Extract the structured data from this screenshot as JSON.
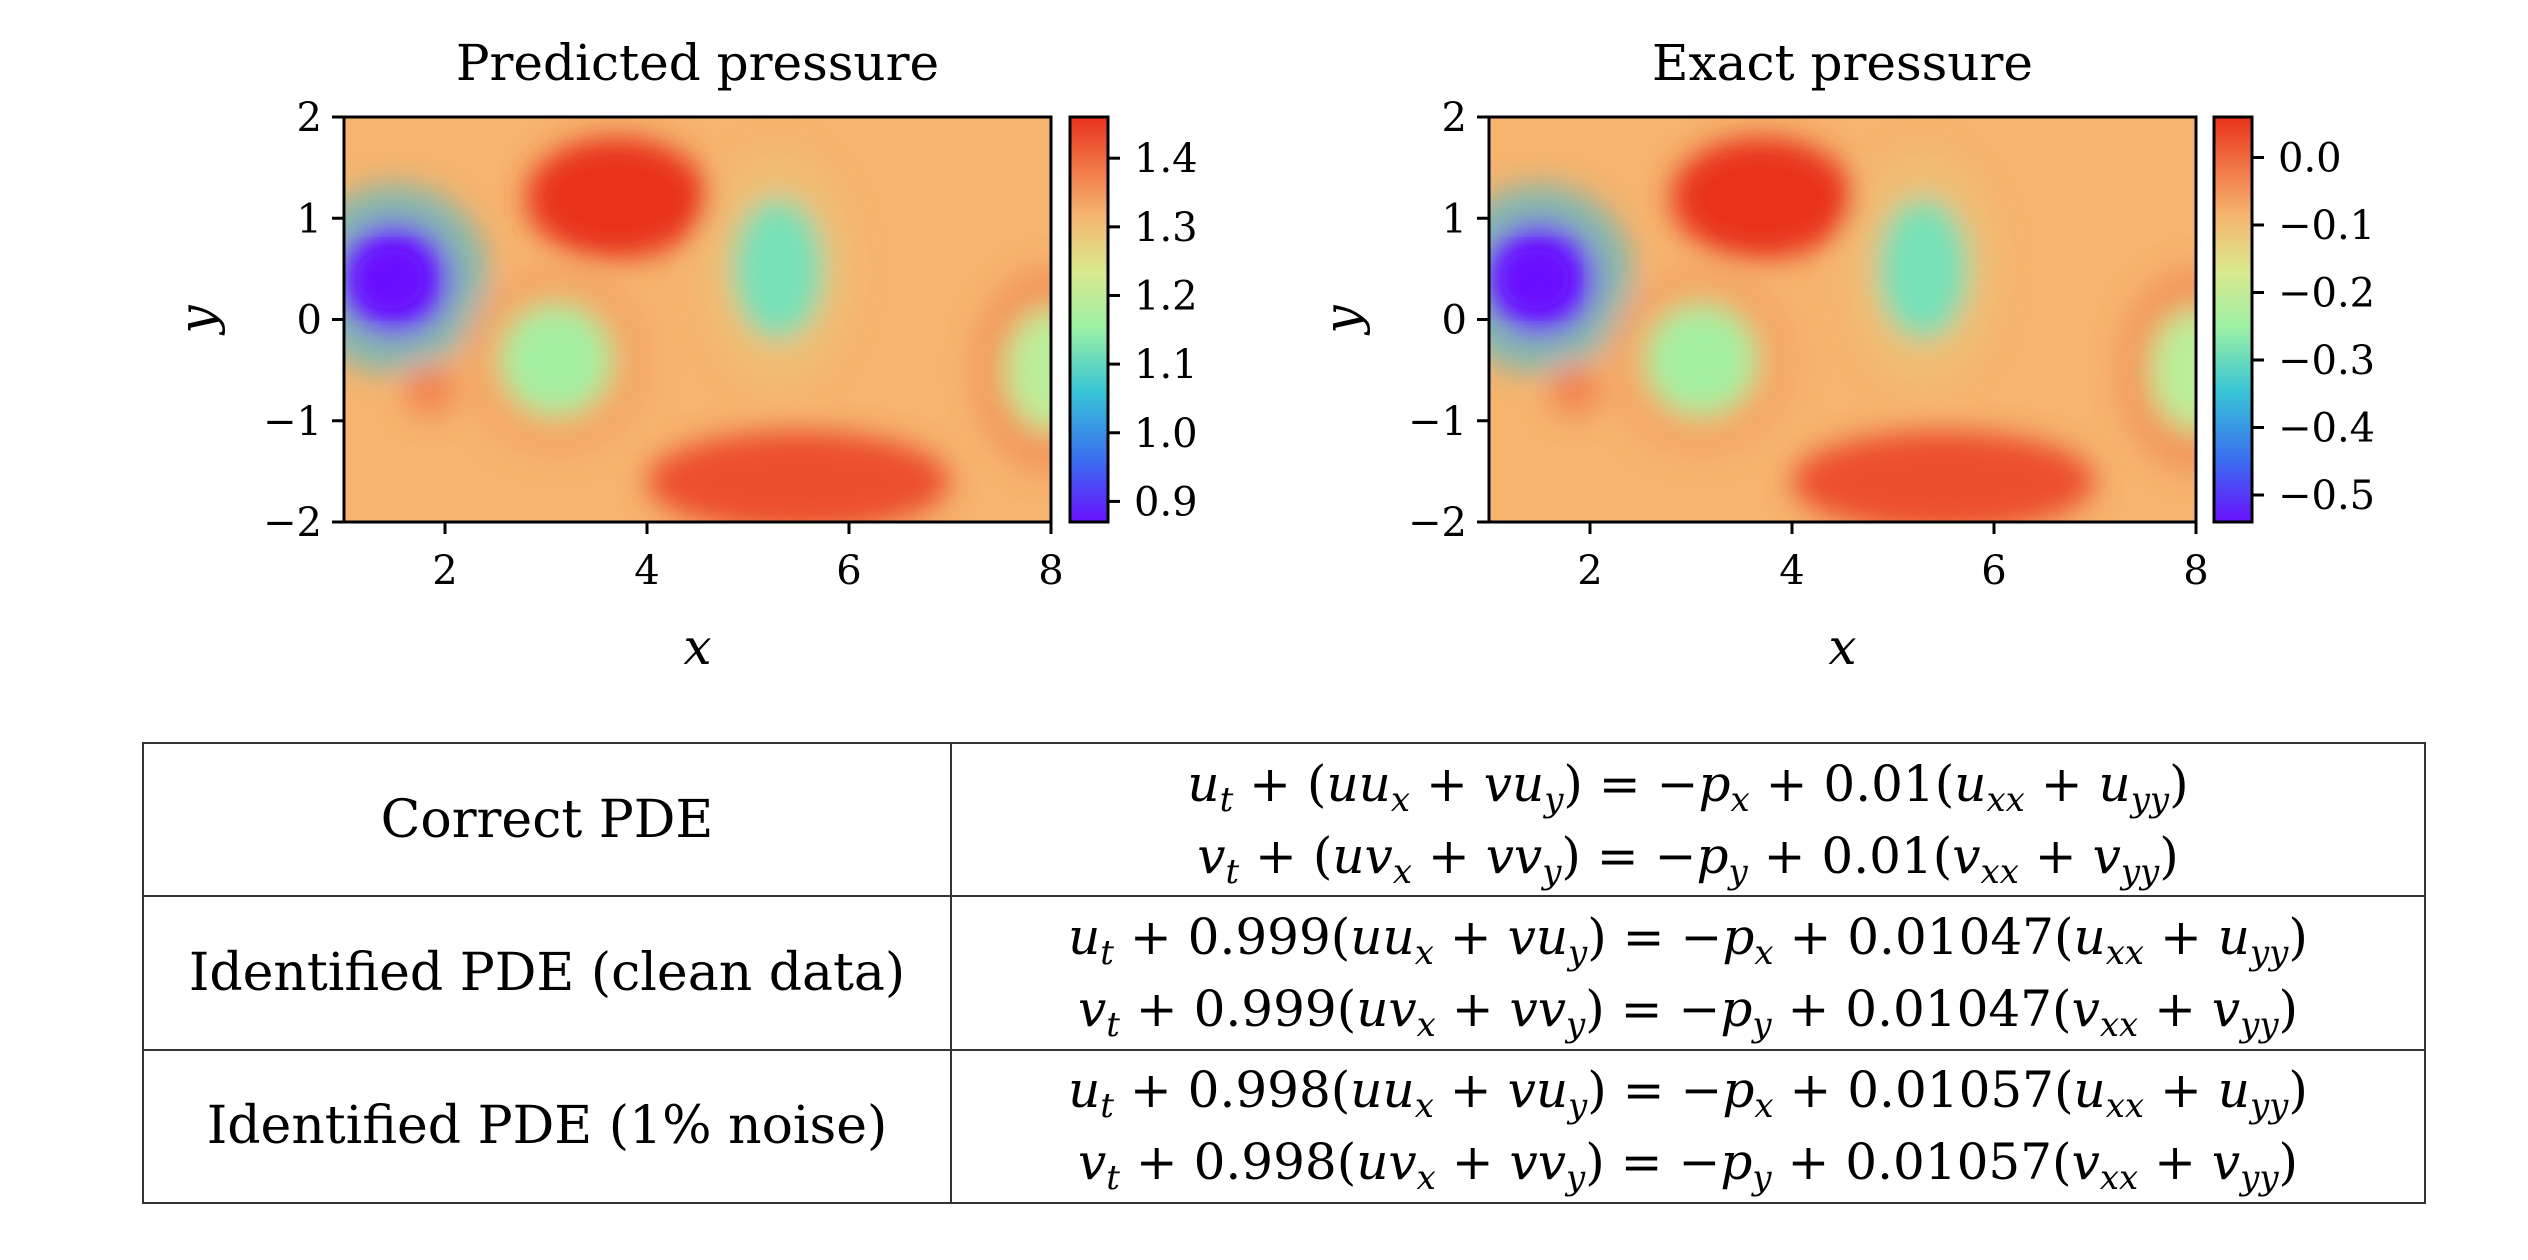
{
  "chart_data": [
    {
      "type": "heatmap",
      "title": "Predicted pressure",
      "xlabel": "x",
      "ylabel": "y",
      "xlim": [
        1,
        8
      ],
      "ylim": [
        -2,
        2
      ],
      "xticks": [
        2,
        4,
        6,
        8
      ],
      "yticks": [
        2,
        1,
        0,
        -1,
        -2
      ],
      "colormap": "rainbow",
      "colorbar": {
        "range": [
          0.87,
          1.46
        ],
        "ticks": [
          "1.4",
          "1.3",
          "1.2",
          "1.1",
          "1.0",
          "0.9"
        ],
        "tick_values": [
          1.4,
          1.3,
          1.2,
          1.1,
          1.0,
          0.9
        ]
      }
    },
    {
      "type": "heatmap",
      "title": "Exact pressure",
      "xlabel": "x",
      "ylabel": "y",
      "xlim": [
        1,
        8
      ],
      "ylim": [
        -2,
        2
      ],
      "xticks": [
        2,
        4,
        6,
        8
      ],
      "yticks": [
        2,
        1,
        0,
        -1,
        -2
      ],
      "colormap": "rainbow",
      "colorbar": {
        "range": [
          -0.54,
          0.06
        ],
        "ticks": [
          "0.0",
          "−0.1",
          "−0.2",
          "−0.3",
          "−0.4",
          "−0.5"
        ],
        "tick_values": [
          0.0,
          -0.1,
          -0.2,
          -0.3,
          -0.4,
          -0.5
        ]
      }
    }
  ],
  "field_features": [
    {
      "name": "min-blob",
      "x": 1.5,
      "y": 0.4,
      "radius_x": 0.55,
      "radius_y": 0.55,
      "level": 0.0
    },
    {
      "name": "high-top",
      "x": 3.7,
      "y": 1.2,
      "radius_x": 0.9,
      "radius_y": 0.6,
      "level": 1.0
    },
    {
      "name": "mid-oval-upper",
      "x": 5.3,
      "y": 0.5,
      "radius_x": 0.45,
      "radius_y": 0.7,
      "level": 0.42
    },
    {
      "name": "mid-oval-lower",
      "x": 3.1,
      "y": -0.4,
      "radius_x": 0.55,
      "radius_y": 0.55,
      "level": 0.5
    },
    {
      "name": "high-bottom",
      "x": 5.5,
      "y": -1.6,
      "radius_x": 1.5,
      "radius_y": 0.5,
      "level": 0.95
    },
    {
      "name": "small-high",
      "x": 1.85,
      "y": -0.7,
      "radius_x": 0.25,
      "radius_y": 0.25,
      "level": 0.85
    },
    {
      "name": "right-edge-mid",
      "x": 8.0,
      "y": -0.5,
      "radius_x": 0.45,
      "radius_y": 0.6,
      "level": 0.55
    }
  ],
  "table": {
    "rows": [
      {
        "label": "Correct PDE",
        "eq1": {
          "u": "u",
          "lhs_coef": "",
          "rhs_coef": "0.01",
          "a": "u",
          "b": "u"
        },
        "eq2": {
          "u": "v",
          "lhs_coef": "",
          "rhs_coef": "0.01",
          "a": "v",
          "b": "v"
        }
      },
      {
        "label": "Identified PDE (clean data)",
        "eq1": {
          "u": "u",
          "lhs_coef": "0.999",
          "rhs_coef": "0.01047"
        },
        "eq2": {
          "u": "v",
          "lhs_coef": "0.999",
          "rhs_coef": "0.01047"
        }
      },
      {
        "label": "Identified PDE (1% noise)",
        "eq1": {
          "u": "u",
          "lhs_coef": "0.998",
          "rhs_coef": "0.01057"
        },
        "eq2": {
          "u": "v",
          "lhs_coef": "0.998",
          "rhs_coef": "0.01057"
        }
      }
    ]
  },
  "colors": {
    "axis": "#000000",
    "table_border": "#333333"
  }
}
